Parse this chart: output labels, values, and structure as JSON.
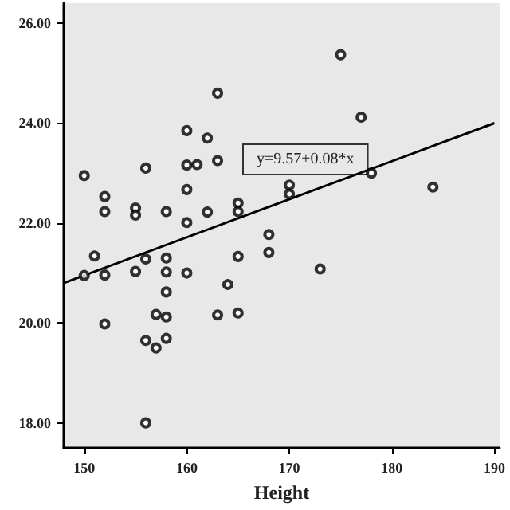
{
  "chart_data": {
    "type": "scatter",
    "xlabel": "Height",
    "annotations": [
      "y=9.57+0.08*x"
    ],
    "marker": "circle",
    "series": [
      {
        "color": "#000000",
        "x": [
          150,
          152,
          152,
          156,
          155,
          155,
          158,
          160,
          160,
          161,
          160,
          160,
          162,
          163,
          163,
          162,
          165,
          165,
          168,
          170,
          170,
          175,
          177,
          178,
          184,
          168,
          151,
          165,
          156,
          158,
          150,
          152,
          155,
          158,
          160,
          173,
          164,
          158,
          157,
          158,
          163,
          165,
          152,
          156,
          158,
          157,
          156
        ],
        "values": [
          22.95,
          22.53,
          22.23,
          23.1,
          22.3,
          22.16,
          22.23,
          23.85,
          23.16,
          23.17,
          22.67,
          22.01,
          23.7,
          24.6,
          23.25,
          22.22,
          22.4,
          22.23,
          21.77,
          22.76,
          22.58,
          25.37,
          24.12,
          23.0,
          22.72,
          21.41,
          21.34,
          21.33,
          21.28,
          21.3,
          20.95,
          20.96,
          21.03,
          21.02,
          21.0,
          21.08,
          20.77,
          20.62,
          20.17,
          20.12,
          20.16,
          20.2,
          19.98,
          19.65,
          19.69,
          19.5,
          18.0
        ]
      },
      {
        "type": "line",
        "marker": "none",
        "color": "#000000",
        "x": [
          148,
          190
        ],
        "values": [
          20.8,
          24.0
        ]
      }
    ],
    "xlim": [
      148,
      190.5
    ],
    "ylim": [
      17.5,
      26.4
    ],
    "xticks": [
      150,
      160,
      170,
      180,
      190
    ],
    "yticks": [
      {
        "value": 18,
        "label": "18.00"
      },
      {
        "value": 20,
        "label": "20.00"
      },
      {
        "value": 22,
        "label": "22.00"
      },
      {
        "value": 24,
        "label": "24.00"
      },
      {
        "value": 26,
        "label": "26.00"
      }
    ]
  }
}
